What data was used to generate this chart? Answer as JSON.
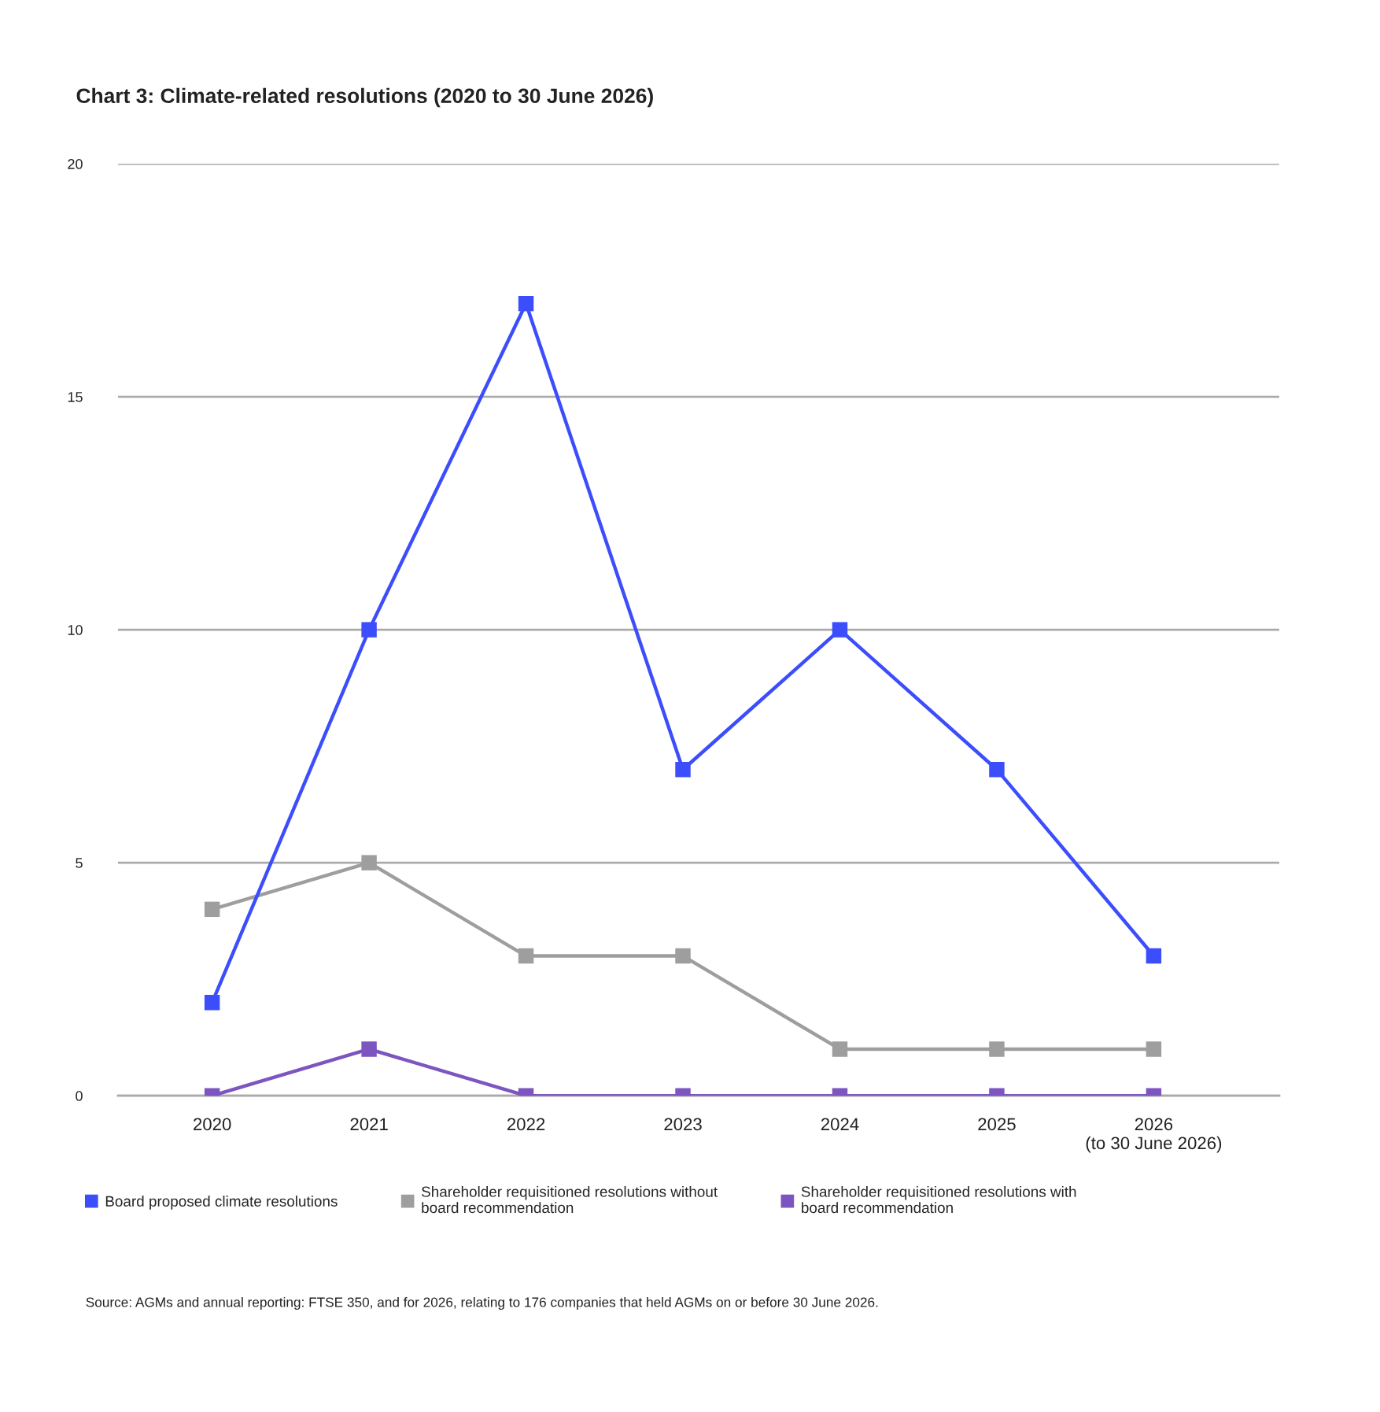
{
  "chart_data": {
    "type": "line",
    "title": "Chart 3: Climate-related resolutions (2020 to 30 June 2026)",
    "categories": [
      "2020",
      "2021",
      "2022",
      "2023",
      "2024",
      "2025",
      "2026\n(to 30 June 2026)"
    ],
    "series": [
      {
        "name": "Board proposed climate resolutions",
        "color": "#3c4efc",
        "values": [
          2,
          10,
          17,
          7,
          10,
          7,
          3
        ]
      },
      {
        "name": "Shareholder requisitioned resolutions without board recommendation",
        "color": "#9e9e9e",
        "values": [
          4,
          5,
          3,
          3,
          1,
          1,
          1
        ]
      },
      {
        "name": "Shareholder requisitioned resolutions with board recommendation",
        "color": "#7c55c0",
        "values": [
          0,
          1,
          0,
          0,
          0,
          0,
          0
        ]
      }
    ],
    "ylim": [
      0,
      20
    ],
    "yticks": [
      0,
      5,
      10,
      15,
      20
    ],
    "grid": "y",
    "legend": "bottom",
    "marker": "square",
    "line_style": "solid",
    "annotations": [
      "Source: AGMs and annual reporting: FTSE 350, and for 2026, relating to 176 companies that held AGMs on or before 30 June 2026."
    ]
  }
}
